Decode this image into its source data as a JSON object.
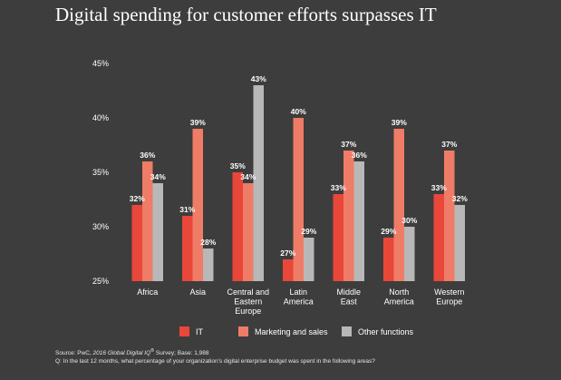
{
  "chart_data": {
    "type": "bar",
    "title": "Digital spending for customer efforts surpasses IT",
    "categories": [
      [
        "Africa"
      ],
      [
        "Asia"
      ],
      [
        "Central and",
        "Eastern",
        "Europe"
      ],
      [
        "Latin",
        "America"
      ],
      [
        "Middle",
        "East"
      ],
      [
        "North",
        "America"
      ],
      [
        "Western",
        "Europe"
      ]
    ],
    "series": [
      {
        "name": "IT",
        "color": "#e8473a",
        "values": [
          32,
          31,
          35,
          27,
          33,
          29,
          33
        ]
      },
      {
        "name": "Marketing and sales",
        "color": "#ef7c66",
        "values": [
          36,
          39,
          34,
          40,
          37,
          39,
          37
        ]
      },
      {
        "name": "Other functions",
        "color": "#b8b8b8",
        "values": [
          34,
          28,
          43,
          29,
          36,
          30,
          32
        ]
      }
    ],
    "ylim": [
      25,
      45
    ],
    "yticks": [
      "25%",
      "30%",
      "35%",
      "40%",
      "45%"
    ],
    "value_suffix": "%",
    "legend_position": "bottom",
    "xlabel": "",
    "ylabel": ""
  },
  "source": {
    "prefix": "Source: PwC, ",
    "survey": "2016 Global Digital IQ",
    "reg": "®",
    "suffix": " Survey; Base: 1,988",
    "question": "Q: In the last 12 months, what percentage of your organization’s digital enterprise budget was spent in the following areas?"
  }
}
